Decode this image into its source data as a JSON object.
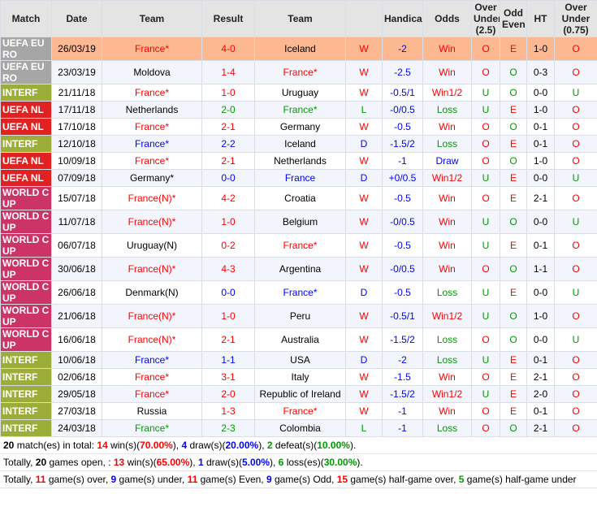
{
  "table": {
    "header": [
      "Match",
      "Date",
      "Team",
      "Result",
      "Team",
      "",
      "Handicap",
      "Odds",
      "Over Under (2.5)",
      "Odd Even",
      "HT",
      "Over Under (0.75)"
    ],
    "rows": [
      {
        "match_color": "#a6a6a6",
        "colors": "wkrrkrbrrrkr",
        "cells": [
          "UEFA EURO",
          "26/03/19",
          "France*",
          "4-0",
          "Iceland",
          "W",
          "-2",
          "Win",
          "O",
          "E",
          "1-0",
          "O"
        ]
      },
      {
        "match_color": "#a6a6a6",
        "colors": "wkkrrrbrrgkr",
        "cells": [
          "UEFA EURO",
          "23/03/19",
          "Moldova",
          "1-4",
          "France*",
          "W",
          "-2.5",
          "Win",
          "O",
          "O",
          "0-3",
          "O"
        ]
      },
      {
        "match_color": "#9cad3a",
        "colors": "wkrrkrbrggkg",
        "cells": [
          "INTERF",
          "21/11/18",
          "France*",
          "1-0",
          "Uruguay",
          "W",
          "-0.5/1",
          "Win1/2",
          "U",
          "O",
          "0-0",
          "U"
        ]
      },
      {
        "match_color": "#e02222",
        "colors": "wkkgggbggrkr",
        "cells": [
          "UEFA NL",
          "17/11/18",
          "Netherlands",
          "2-0",
          "France*",
          "L",
          "-0/0.5",
          "Loss",
          "U",
          "E",
          "1-0",
          "O"
        ]
      },
      {
        "match_color": "#e02222",
        "colors": "wkrrkrbrrgkr",
        "cells": [
          "UEFA NL",
          "17/10/18",
          "France*",
          "2-1",
          "Germany",
          "W",
          "-0.5",
          "Win",
          "O",
          "O",
          "0-1",
          "O"
        ]
      },
      {
        "match_color": "#9cad3a",
        "colors": "wkbbkbbgrrkr",
        "cells": [
          "INTERF",
          "12/10/18",
          "France*",
          "2-2",
          "Iceland",
          "D",
          "-1.5/2",
          "Loss",
          "O",
          "E",
          "0-1",
          "O"
        ]
      },
      {
        "match_color": "#e02222",
        "colors": "wkrrkrbbrgkr",
        "cells": [
          "UEFA NL",
          "10/09/18",
          "France*",
          "2-1",
          "Netherlands",
          "W",
          "-1",
          "Draw",
          "O",
          "O",
          "1-0",
          "O"
        ]
      },
      {
        "match_color": "#e02222",
        "colors": "wkkbbbbrgrkg",
        "cells": [
          "UEFA NL",
          "07/09/18",
          "Germany*",
          "0-0",
          "France",
          "D",
          "+0/0.5",
          "Win1/2",
          "U",
          "E",
          "0-0",
          "U"
        ]
      },
      {
        "match_color": "#cc3366",
        "colors": "wkrrkrbrrrkr",
        "cells": [
          "WORLD CUP",
          "15/07/18",
          "France(N)*",
          "4-2",
          "Croatia",
          "W",
          "-0.5",
          "Win",
          "O",
          "E",
          "2-1",
          "O"
        ]
      },
      {
        "match_color": "#cc3366",
        "colors": "wkrrkrbrggkg",
        "cells": [
          "WORLD CUP",
          "11/07/18",
          "France(N)*",
          "1-0",
          "Belgium",
          "W",
          "-0/0.5",
          "Win",
          "U",
          "O",
          "0-0",
          "U"
        ]
      },
      {
        "match_color": "#cc3366",
        "colors": "wkkrrrbrgrkr",
        "cells": [
          "WORLD CUP",
          "06/07/18",
          "Uruguay(N)",
          "0-2",
          "France*",
          "W",
          "-0.5",
          "Win",
          "U",
          "E",
          "0-1",
          "O"
        ]
      },
      {
        "match_color": "#cc3366",
        "colors": "wkrrkrbrrgkr",
        "cells": [
          "WORLD CUP",
          "30/06/18",
          "France(N)*",
          "4-3",
          "Argentina",
          "W",
          "-0/0.5",
          "Win",
          "O",
          "O",
          "1-1",
          "O"
        ]
      },
      {
        "match_color": "#cc3366",
        "colors": "wkkbbbbggrkg",
        "cells": [
          "WORLD CUP",
          "26/06/18",
          "Denmark(N)",
          "0-0",
          "France*",
          "D",
          "-0.5",
          "Loss",
          "U",
          "E",
          "0-0",
          "U"
        ]
      },
      {
        "match_color": "#cc3366",
        "colors": "wkrrkrbrggkr",
        "cells": [
          "WORLD CUP",
          "21/06/18",
          "France(N)*",
          "1-0",
          "Peru",
          "W",
          "-0.5/1",
          "Win1/2",
          "U",
          "O",
          "1-0",
          "O"
        ]
      },
      {
        "match_color": "#cc3366",
        "colors": "wkrrkrbgrgkg",
        "cells": [
          "WORLD CUP",
          "16/06/18",
          "France(N)*",
          "2-1",
          "Australia",
          "W",
          "-1.5/2",
          "Loss",
          "O",
          "O",
          "0-0",
          "U"
        ]
      },
      {
        "match_color": "#9cad3a",
        "colors": "wkbbkbbggrkr",
        "cells": [
          "INTERF",
          "10/06/18",
          "France*",
          "1-1",
          "USA",
          "D",
          "-2",
          "Loss",
          "U",
          "E",
          "0-1",
          "O"
        ]
      },
      {
        "match_color": "#9cad3a",
        "colors": "wkrrkrbrrrkr",
        "cells": [
          "INTERF",
          "02/06/18",
          "France*",
          "3-1",
          "Italy",
          "W",
          "-1.5",
          "Win",
          "O",
          "E",
          "2-1",
          "O"
        ]
      },
      {
        "match_color": "#9cad3a",
        "colors": "wkrrkrbrgrkr",
        "cells": [
          "INTERF",
          "29/05/18",
          "France*",
          "2-0",
          "Republic of Ireland",
          "W",
          "-1.5/2",
          "Win1/2",
          "U",
          "E",
          "2-0",
          "O"
        ]
      },
      {
        "match_color": "#9cad3a",
        "colors": "wkkrrrbrrrkr",
        "cells": [
          "INTERF",
          "27/03/18",
          "Russia",
          "1-3",
          "France*",
          "W",
          "-1",
          "Win",
          "O",
          "E",
          "0-1",
          "O"
        ]
      },
      {
        "match_color": "#9cad3a",
        "colors": "wkggkgbgrgkr",
        "cells": [
          "INTERF",
          "24/03/18",
          "France*",
          "2-3",
          "Colombia",
          "L",
          "-1",
          "Loss",
          "O",
          "O",
          "2-1",
          "O"
        ]
      }
    ]
  },
  "summary": [
    [
      {
        "text": "20",
        "style": "k"
      },
      {
        "text": " match(es) in total: "
      },
      {
        "text": "14",
        "style": "r"
      },
      {
        "text": " win(s)("
      },
      {
        "text": "70.00%",
        "style": "r"
      },
      {
        "text": "), "
      },
      {
        "text": "4",
        "style": "b"
      },
      {
        "text": " draw(s)("
      },
      {
        "text": "20.00%",
        "style": "b"
      },
      {
        "text": "), "
      },
      {
        "text": "2",
        "style": "g"
      },
      {
        "text": " defeat(s)("
      },
      {
        "text": "10.00%",
        "style": "g"
      },
      {
        "text": ")."
      }
    ],
    [
      {
        "text": "Totally, "
      },
      {
        "text": "20",
        "style": "k"
      },
      {
        "text": " games open, : "
      },
      {
        "text": "13",
        "style": "r"
      },
      {
        "text": " win(s)("
      },
      {
        "text": "65.00%",
        "style": "r"
      },
      {
        "text": "), "
      },
      {
        "text": "1",
        "style": "b"
      },
      {
        "text": " draw(s)("
      },
      {
        "text": "5.00%",
        "style": "b"
      },
      {
        "text": "), "
      },
      {
        "text": "6",
        "style": "g"
      },
      {
        "text": " loss(es)("
      },
      {
        "text": "30.00%",
        "style": "g"
      },
      {
        "text": ")."
      }
    ],
    [
      {
        "text": "Totally, "
      },
      {
        "text": "11",
        "style": "r"
      },
      {
        "text": " game(s) over, "
      },
      {
        "text": "9",
        "style": "b"
      },
      {
        "text": " game(s) under, "
      },
      {
        "text": "11",
        "style": "r"
      },
      {
        "text": " game(s) Even, "
      },
      {
        "text": "9",
        "style": "b"
      },
      {
        "text": " game(s) Odd, "
      },
      {
        "text": "15",
        "style": "r"
      },
      {
        "text": " game(s) half-game over, "
      },
      {
        "text": "5",
        "style": "g"
      },
      {
        "text": " game(s) half-game under"
      }
    ]
  ]
}
